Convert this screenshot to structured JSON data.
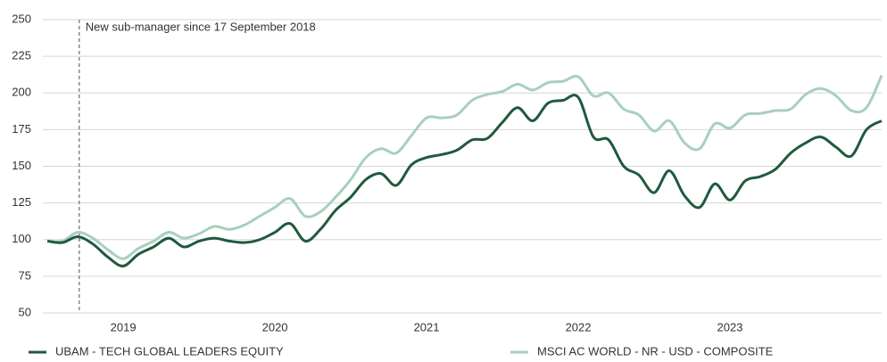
{
  "chart_data": {
    "type": "line",
    "x": [
      2018.5,
      2018.6,
      2018.7,
      2018.8,
      2018.9,
      2019.0,
      2019.1,
      2019.2,
      2019.3,
      2019.4,
      2019.5,
      2019.6,
      2019.7,
      2019.8,
      2019.9,
      2020.0,
      2020.1,
      2020.2,
      2020.3,
      2020.4,
      2020.5,
      2020.6,
      2020.7,
      2020.8,
      2020.9,
      2021.0,
      2021.1,
      2021.2,
      2021.3,
      2021.4,
      2021.5,
      2021.6,
      2021.7,
      2021.8,
      2021.9,
      2022.0,
      2022.1,
      2022.2,
      2022.3,
      2022.4,
      2022.5,
      2022.6,
      2022.7,
      2022.8,
      2022.9,
      2023.0,
      2023.1,
      2023.2,
      2023.3,
      2023.4,
      2023.5,
      2023.6,
      2023.7,
      2023.8,
      2023.9,
      2024.0
    ],
    "series": [
      {
        "name": "UBAM - TECH GLOBAL LEADERS EQUITY",
        "color": "#1f5a3d",
        "values": [
          99,
          98,
          102,
          97,
          88,
          82,
          90,
          95,
          101,
          95,
          99,
          101,
          99,
          98,
          100,
          105,
          111,
          99,
          107,
          120,
          129,
          141,
          145,
          137,
          151,
          156,
          158,
          161,
          168,
          169,
          180,
          190,
          181,
          193,
          195,
          197,
          170,
          168,
          150,
          144,
          132,
          147,
          130,
          122,
          138,
          127,
          140,
          143,
          148,
          159,
          166,
          170,
          163,
          157,
          175,
          181
        ]
      },
      {
        "name": "MSCI AC WORLD - NR - USD - COMPOSITE",
        "color": "#a8cfbf",
        "values": [
          99,
          99,
          105,
          101,
          93,
          87,
          94,
          99,
          105,
          101,
          104,
          109,
          107,
          110,
          116,
          122,
          128,
          116,
          119,
          129,
          141,
          156,
          162,
          159,
          171,
          183,
          183,
          185,
          195,
          199,
          201,
          206,
          202,
          207,
          208,
          211,
          198,
          200,
          189,
          185,
          174,
          181,
          166,
          162,
          179,
          176,
          185,
          186,
          188,
          189,
          199,
          203,
          198,
          188,
          190,
          212
        ]
      }
    ],
    "xlim": [
      2018.47,
      2024.0
    ],
    "xticks": [
      2019,
      2020,
      2021,
      2022,
      2023
    ],
    "ylim": [
      50,
      250
    ],
    "yticks": [
      50,
      75,
      100,
      125,
      150,
      175,
      200,
      225,
      250
    ],
    "grid": true,
    "legend": "bottom",
    "annotations": [
      {
        "label": "New sub-manager since 17 September 2018",
        "x": 2018.71
      }
    ]
  }
}
